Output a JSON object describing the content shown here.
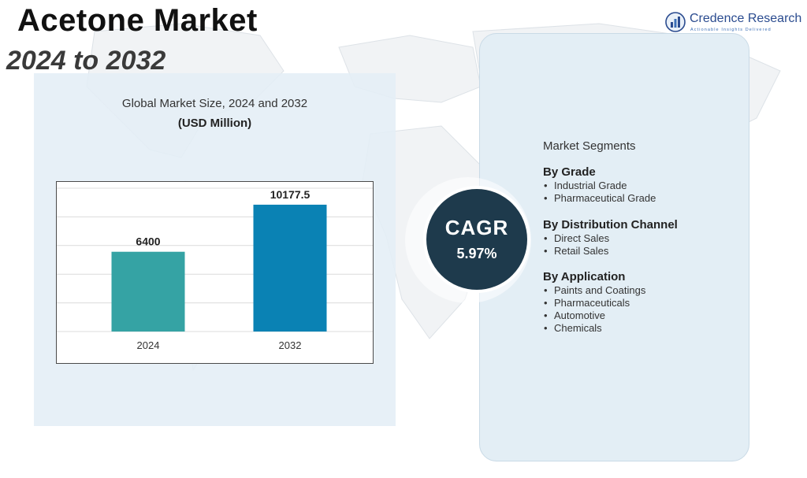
{
  "header": {
    "title": "Acetone Market",
    "subtitle": "2024 to 2032"
  },
  "logo": {
    "name": "Credence Research",
    "tagline": "Actionable Insights Delivered"
  },
  "chart_data": {
    "type": "bar",
    "title": "Global Market Size, 2024 and 2032",
    "unit_label": "(USD Million)",
    "categories": [
      "2024",
      "2032"
    ],
    "values": [
      6400,
      10177.5
    ],
    "data_labels": [
      "6400",
      "10177.5"
    ],
    "bar_colors": [
      "#35a3a4",
      "#0a82b4"
    ],
    "ylim": [
      0,
      11500
    ],
    "grid": true,
    "xlabel": "",
    "ylabel": ""
  },
  "cagr": {
    "label": "CAGR",
    "value": "5.97%"
  },
  "segments": {
    "title": "Market Segments",
    "groups": [
      {
        "heading": "By Grade",
        "items": [
          "Industrial Grade",
          "Pharmaceutical Grade"
        ]
      },
      {
        "heading": "By Distribution Channel",
        "items": [
          "Direct Sales",
          "Retail Sales"
        ]
      },
      {
        "heading": "By Application",
        "items": [
          "Paints and Coatings",
          "Pharmaceuticals",
          "Automotive",
          "Chemicals"
        ]
      }
    ]
  },
  "colors": {
    "cagr_circle": "#1e3a4c",
    "panel_bg": "#e3eef5"
  }
}
